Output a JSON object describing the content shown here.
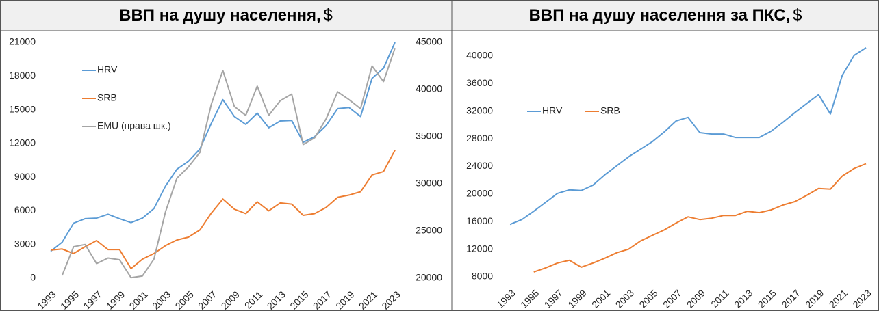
{
  "chart_data": [
    {
      "type": "line",
      "title": "ВВП на душу населення,",
      "title_unit": "$",
      "x": [
        1993,
        1994,
        1995,
        1996,
        1997,
        1998,
        1999,
        2000,
        2001,
        2002,
        2003,
        2004,
        2005,
        2006,
        2007,
        2008,
        2009,
        2010,
        2011,
        2012,
        2013,
        2014,
        2015,
        2016,
        2017,
        2018,
        2019,
        2020,
        2021,
        2022,
        2023
      ],
      "xlim": [
        1993,
        2023
      ],
      "xticks": [
        1993,
        1995,
        1997,
        1999,
        2001,
        2003,
        2005,
        2007,
        2009,
        2011,
        2013,
        2015,
        2017,
        2019,
        2021,
        2023
      ],
      "ylim": [
        0,
        21000
      ],
      "yticks": [
        0,
        3000,
        6000,
        9000,
        12000,
        15000,
        18000,
        21000
      ],
      "y2lim": [
        20000,
        45000
      ],
      "y2ticks": [
        20000,
        25000,
        30000,
        35000,
        40000,
        45000
      ],
      "grid": false,
      "legend": "upper left",
      "legend_layout": "vertical",
      "series": [
        {
          "name": "HRV",
          "color": "#5b9bd5",
          "values": [
            2400,
            3200,
            4900,
            5300,
            5350,
            5700,
            5300,
            4950,
            5350,
            6200,
            8200,
            9700,
            10400,
            11500,
            13800,
            15900,
            14400,
            13700,
            14700,
            13400,
            14000,
            14050,
            12100,
            12600,
            13600,
            15100,
            15200,
            14400,
            17800,
            18700,
            21000
          ]
        },
        {
          "name": "SRB",
          "color": "#ed7d31",
          "values": [
            2500,
            2600,
            2200,
            2800,
            3350,
            2550,
            2550,
            850,
            1700,
            2200,
            2900,
            3400,
            3650,
            4300,
            5800,
            7050,
            6150,
            5750,
            6800,
            6000,
            6700,
            6600,
            5600,
            5750,
            6300,
            7200,
            7400,
            7700,
            9200,
            9500,
            11400
          ]
        },
        {
          "name": "EMU (права шк.)",
          "color": "#a5a5a5",
          "axis": "y2",
          "values": [
            null,
            20300,
            23330,
            23570,
            21550,
            22140,
            21960,
            20060,
            20240,
            22020,
            27020,
            30600,
            31790,
            33330,
            38450,
            42020,
            38210,
            37260,
            40360,
            37260,
            38810,
            39520,
            34170,
            34880,
            36900,
            39760,
            38930,
            37980,
            42500,
            40830,
            44400
          ]
        }
      ]
    },
    {
      "type": "line",
      "title": "ВВП на душу населення за ПКС,",
      "title_unit": "$",
      "x": [
        1993,
        1994,
        1995,
        1996,
        1997,
        1998,
        1999,
        2000,
        2001,
        2002,
        2003,
        2004,
        2005,
        2006,
        2007,
        2008,
        2009,
        2010,
        2011,
        2012,
        2013,
        2014,
        2015,
        2016,
        2017,
        2018,
        2019,
        2020,
        2021,
        2022,
        2023
      ],
      "xlim": [
        1993,
        2023
      ],
      "xticks": [
        1993,
        1995,
        1997,
        1999,
        2001,
        2003,
        2005,
        2007,
        2009,
        2011,
        2013,
        2015,
        2017,
        2019,
        2021,
        2023
      ],
      "ylim": [
        8000,
        40000
      ],
      "yticks": [
        8000,
        12000,
        16000,
        20000,
        24000,
        28000,
        32000,
        36000,
        40000
      ],
      "grid": false,
      "legend": "upper left",
      "legend_layout": "horizontal",
      "series": [
        {
          "name": "HRV",
          "color": "#5b9bd5",
          "values": [
            15600,
            16300,
            17500,
            18800,
            20100,
            20600,
            20500,
            21300,
            22800,
            24100,
            25400,
            26500,
            27600,
            29000,
            30600,
            31100,
            28900,
            28700,
            28700,
            28200,
            28200,
            28200,
            29100,
            30400,
            31800,
            33100,
            34400,
            31600,
            37200,
            40100,
            41200
          ]
        },
        {
          "name": "SRB",
          "color": "#ed7d31",
          "values": [
            null,
            null,
            8700,
            9300,
            10000,
            10400,
            9400,
            10000,
            10700,
            11500,
            12000,
            13200,
            14000,
            14800,
            15800,
            16700,
            16300,
            16500,
            16900,
            16900,
            17500,
            17300,
            17700,
            18400,
            18900,
            19800,
            20800,
            20700,
            22600,
            23700,
            24400
          ]
        }
      ]
    }
  ]
}
